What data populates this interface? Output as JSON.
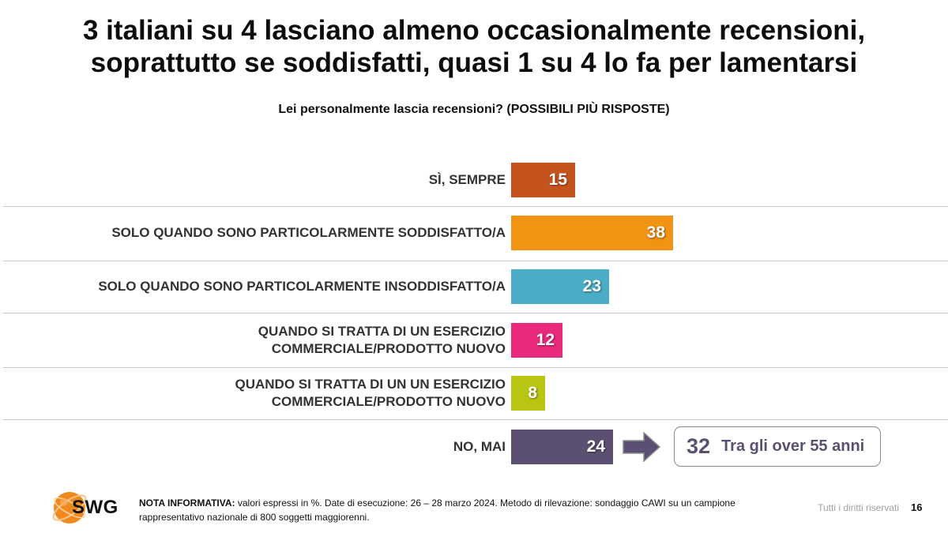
{
  "header": {
    "title_line1": "3 italiani su 4 lasciano almeno occasionalmente recensioni,",
    "title_line2": "soprattutto se soddisfatti, quasi 1 su 4 lo fa per lamentarsi",
    "question": "Lei personalmente lascia recensioni? (POSSIBILI PIÙ RISPOSTE)"
  },
  "chart_data": {
    "type": "bar",
    "orientation": "horizontal",
    "categories": [
      "SÌ, SEMPRE",
      "SOLO QUANDO SONO PARTICOLARMENTE SODDISFATTO/A",
      "SOLO QUANDO SONO PARTICOLARMENTE INSODDISFATTO/A",
      "QUANDO SI TRATTA DI UN ESERCIZIO COMMERCIALE/PRODOTTO NUOVO",
      "QUANDO SI TRATTA DI UN UN ESERCIZIO COMMERCIALE/PRODOTTO NUOVO",
      "NO, MAI"
    ],
    "category_lines": [
      [
        "SÌ, SEMPRE"
      ],
      [
        "SOLO QUANDO SONO PARTICOLARMENTE SODDISFATTO/A"
      ],
      [
        "SOLO QUANDO SONO PARTICOLARMENTE INSODDISFATTO/A"
      ],
      [
        "QUANDO SI TRATTA DI UN ESERCIZIO",
        "COMMERCIALE/PRODOTTO NUOVO"
      ],
      [
        "QUANDO SI TRATTA DI UN UN ESERCIZIO",
        "COMMERCIALE/PRODOTTO NUOVO"
      ],
      [
        "NO, MAI"
      ]
    ],
    "values": [
      15,
      38,
      23,
      12,
      8,
      24
    ],
    "value_labels": [
      "15",
      "38",
      "23",
      "12",
      "8",
      "24"
    ],
    "colors": [
      "#c5531d",
      "#f39314",
      "#4bacc6",
      "#e8297c",
      "#b8c511",
      "#5b5072"
    ],
    "unit": "%",
    "grid": false,
    "legend": "none"
  },
  "callout": {
    "value": "32",
    "text": "Tra gli over 55 anni",
    "color": "#5b5072"
  },
  "footer": {
    "logo_text": "SWG",
    "note_label": "NOTA INFORMATIVA:",
    "note_text": " valori espressi in %. Date di esecuzione: 26 – 28 marzo 2024. Metodo di rilevazione: sondaggio CAWI su un campione rappresentativo nazionale di 800 soggetti maggiorenni.",
    "rights": "Tutti i diritti riservati",
    "page_number": "16"
  }
}
